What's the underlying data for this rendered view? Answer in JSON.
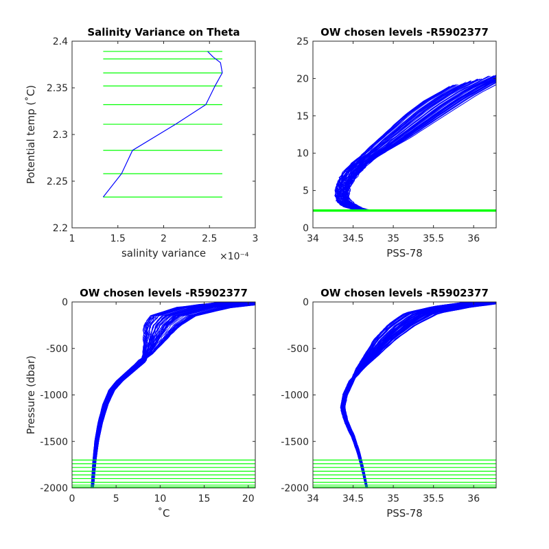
{
  "colors": {
    "data": "#0000ff",
    "levels": "#00ff00",
    "axis": "#262626"
  },
  "chart_data": [
    {
      "type": "line",
      "title": "Salinity Variance on Theta",
      "xlabel": "salinity variance",
      "x_exponent": "×10⁻⁴",
      "ylabel": "Potential temp (˚C)",
      "xlim": [
        1,
        3
      ],
      "ylim": [
        2.2,
        2.4
      ],
      "xticks": [
        "1",
        "1.5",
        "2",
        "2.5",
        "3"
      ],
      "yticks": [
        "2.2",
        "2.25",
        "2.3",
        "2.35",
        "2.4"
      ],
      "series": [
        {
          "x": [
            1.34,
            1.54,
            1.66,
            2.13,
            2.46,
            2.56,
            2.64,
            2.62,
            2.54,
            2.48
          ],
          "y": [
            2.233,
            2.258,
            2.283,
            2.311,
            2.332,
            2.352,
            2.366,
            2.377,
            2.383,
            2.389
          ]
        }
      ],
      "levels": [
        2.233,
        2.258,
        2.283,
        2.311,
        2.332,
        2.352,
        2.366,
        2.381,
        2.389
      ],
      "level_x_range": [
        1.34,
        2.64
      ]
    },
    {
      "type": "line",
      "title": "OW chosen levels -R5902377",
      "xlabel": "PSS-78",
      "ylabel": "",
      "xlim": [
        34,
        36.28
      ],
      "ylim": [
        0,
        25
      ],
      "xticks": [
        "34",
        "34.5",
        "35",
        "35.5",
        "36"
      ],
      "yticks": [
        "0",
        "5",
        "10",
        "15",
        "20",
        "25"
      ],
      "envelope": {
        "x": [
          34.7,
          34.62,
          34.5,
          34.41,
          34.37,
          34.37,
          34.4,
          34.45,
          34.52,
          34.62,
          34.75,
          34.92,
          35.1,
          35.35,
          35.6,
          35.9,
          36.28
        ],
        "y": [
          2.2,
          2.4,
          2.8,
          3.3,
          4.0,
          4.8,
          5.8,
          6.8,
          7.8,
          8.8,
          9.8,
          11.0,
          12.5,
          14.5,
          16.5,
          18.5,
          20.5
        ]
      },
      "levels": [
        2.233,
        2.258,
        2.283,
        2.311,
        2.332,
        2.352,
        2.366,
        2.381,
        2.389
      ]
    },
    {
      "type": "line",
      "title": "OW chosen levels -R5902377",
      "xlabel": "˚C",
      "ylabel": "Pressure (dbar)",
      "xlim": [
        0,
        20.8
      ],
      "ylim": [
        -2000,
        0
      ],
      "xticks": [
        "0",
        "5",
        "10",
        "15",
        "20"
      ],
      "yticks": [
        "-2000",
        "-1500",
        "-1000",
        "-500",
        "0"
      ],
      "envelope": {
        "y": [
          -2000,
          -1700,
          -1500,
          -1300,
          -1100,
          -950,
          -850,
          -750,
          -650,
          -560,
          -450,
          -350,
          -250,
          -150,
          -60,
          0
        ],
        "x": [
          2.3,
          2.55,
          2.8,
          3.2,
          3.8,
          4.5,
          5.4,
          6.6,
          7.8,
          8.6,
          9.2,
          9.7,
          10.3,
          11.5,
          15,
          20.5
        ]
      },
      "levels": [
        -1700,
        -1740,
        -1780,
        -1820,
        -1860,
        -1900,
        -1940,
        -1970,
        -1990
      ]
    },
    {
      "type": "line",
      "title": "OW chosen levels -R5902377",
      "xlabel": "PSS-78",
      "ylabel": "",
      "xlim": [
        34,
        36.28
      ],
      "ylim": [
        -2000,
        0
      ],
      "xticks": [
        "34",
        "34.5",
        "35",
        "35.5",
        "36"
      ],
      "yticks": [
        "-2000",
        "-1500",
        "-1000",
        "-500",
        "0"
      ],
      "envelope": {
        "y": [
          -2000,
          -1800,
          -1600,
          -1450,
          -1300,
          -1150,
          -1000,
          -850,
          -700,
          -550,
          -400,
          -250,
          -120,
          -50,
          0
        ],
        "x": [
          34.67,
          34.62,
          34.56,
          34.5,
          34.42,
          34.37,
          34.4,
          34.48,
          34.6,
          34.75,
          34.9,
          35.1,
          35.35,
          35.75,
          36.2
        ]
      },
      "levels": [
        -1700,
        -1740,
        -1780,
        -1820,
        -1860,
        -1900,
        -1940,
        -1970,
        -1990
      ]
    }
  ]
}
